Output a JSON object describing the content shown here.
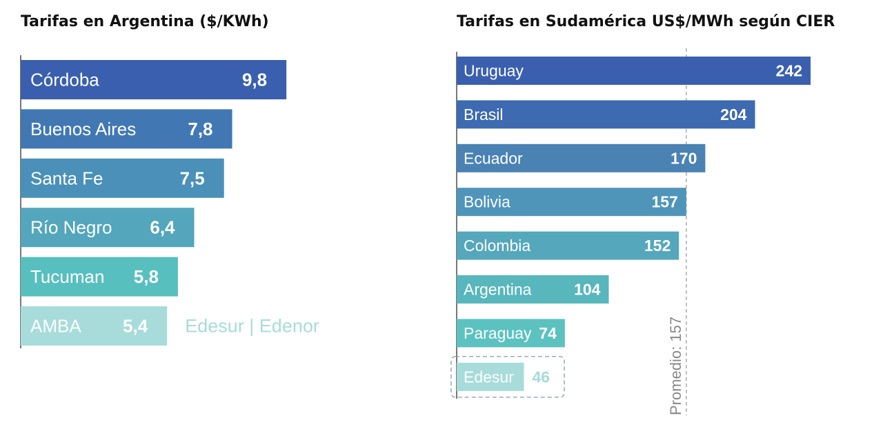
{
  "colors": {
    "left_bars": [
      "#3a5fae",
      "#4178b4",
      "#4a90b8",
      "#53a6bc",
      "#58bfbf",
      "#a7dcdb"
    ],
    "right_bars": [
      "#3a5fae",
      "#3d6ab0",
      "#4a82b4",
      "#4f95ba",
      "#55a7bb",
      "#58b6bd",
      "#5cc2c0",
      "#a7dcdb"
    ],
    "light_text": "#a7dcdb",
    "axis": "#777777",
    "average_line": "#aaaaaa",
    "average_label": "#888888"
  },
  "chart_data": [
    {
      "type": "bar",
      "orientation": "horizontal",
      "title": "Tarifas en Argentina ($/KWh)",
      "categories": [
        "Córdoba",
        "Buenos Aires",
        "Santa Fe",
        "Río Negro",
        "Tucuman",
        "AMBA"
      ],
      "values": [
        9.8,
        7.8,
        7.5,
        6.4,
        5.8,
        5.4
      ],
      "value_labels": [
        "9,8",
        "7,8",
        "7,5",
        "6,4",
        "5,8",
        "5,4"
      ],
      "annotation": "Edesur | Edenor",
      "annotated_category": "AMBA",
      "xlabel": "",
      "ylabel": ""
    },
    {
      "type": "bar",
      "orientation": "horizontal",
      "title": "Tarifas en Sudamérica US$/MWh según CIER",
      "categories": [
        "Uruguay",
        "Brasil",
        "Ecuador",
        "Bolivia",
        "Colombia",
        "Argentina",
        "Paraguay",
        "Edesur"
      ],
      "values": [
        242,
        204,
        170,
        157,
        152,
        104,
        74,
        46
      ],
      "value_labels": [
        "242",
        "204",
        "170",
        "157",
        "152",
        "104",
        "74",
        "46"
      ],
      "highlighted_category": "Edesur",
      "average": {
        "value": 157,
        "label": "Promedio: 157"
      },
      "xlabel": "",
      "ylabel": ""
    }
  ]
}
